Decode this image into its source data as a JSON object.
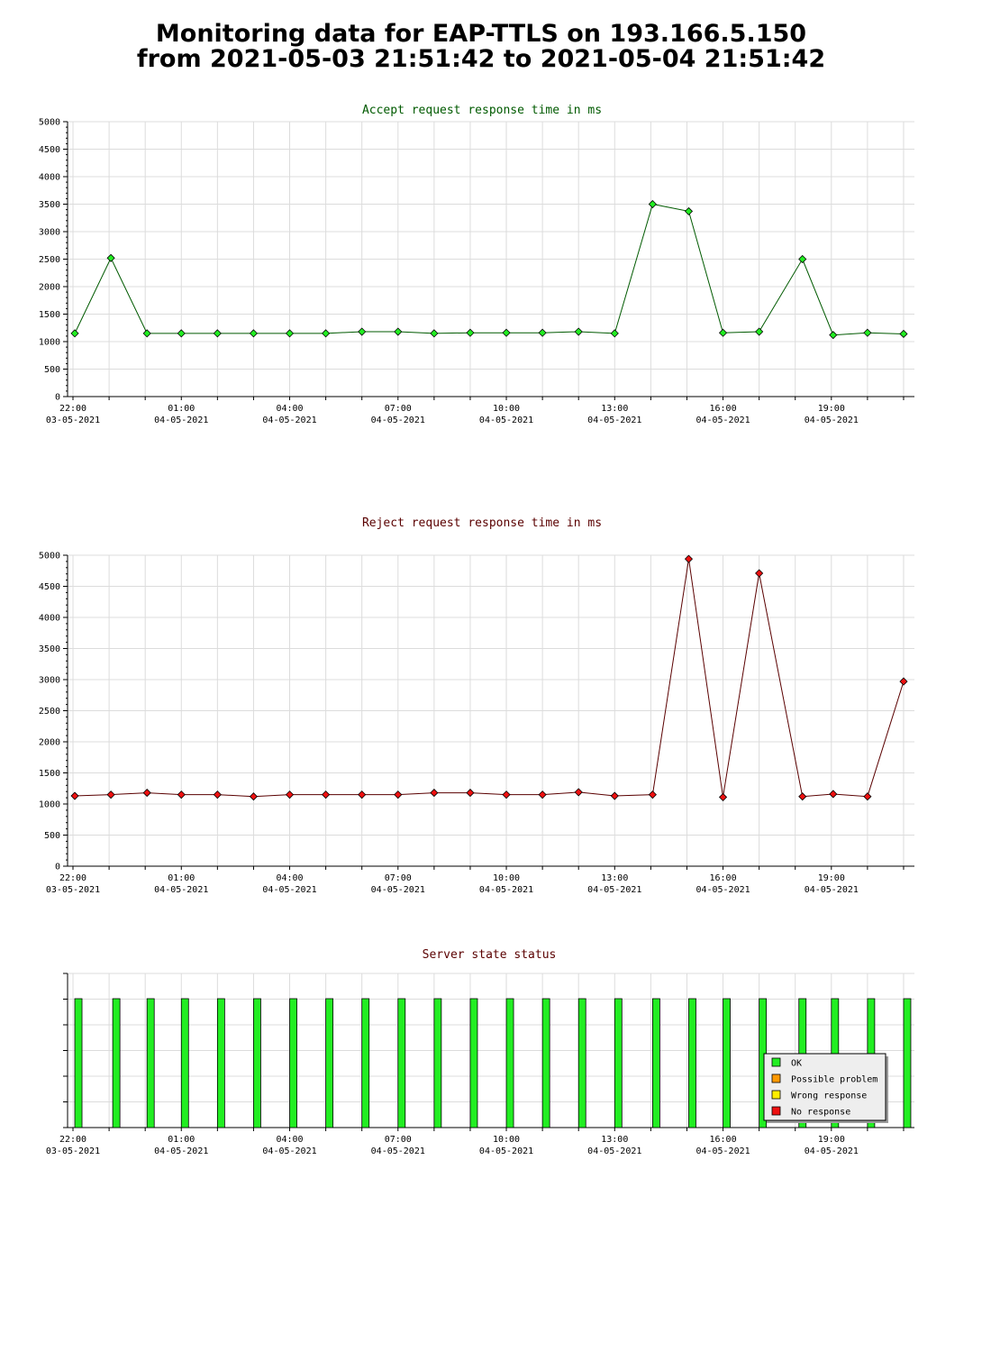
{
  "page": {
    "title_line1": "Monitoring data for EAP-TTLS on 193.166.5.150",
    "title_line2": "from 2021-05-03 21:51:42 to 2021-05-04 21:51:42"
  },
  "colors": {
    "accept_line": "#005a00",
    "accept_marker": "#22ee22",
    "reject_line": "#5a0000",
    "reject_marker": "#ee1111",
    "ok": "#22ee22",
    "possible_problem": "#ff9900",
    "wrong_response": "#ffee00",
    "no_response": "#ee1111"
  },
  "chart_data": [
    {
      "type": "line",
      "title": "Accept request response time in ms",
      "xlabel": "",
      "ylabel": "",
      "ylim": [
        0,
        5000
      ],
      "y_ticks": [
        0,
        500,
        1000,
        1500,
        2000,
        2500,
        3000,
        3500,
        4000,
        4500,
        5000
      ],
      "x_range_hours": [
        -0.15,
        23.3
      ],
      "x_tick_labels": [
        {
          "time": "22:00",
          "date": "03-05-2021"
        },
        {
          "time": "01:00",
          "date": "04-05-2021"
        },
        {
          "time": "04:00",
          "date": "04-05-2021"
        },
        {
          "time": "07:00",
          "date": "04-05-2021"
        },
        {
          "time": "10:00",
          "date": "04-05-2021"
        },
        {
          "time": "13:00",
          "date": "04-05-2021"
        },
        {
          "time": "16:00",
          "date": "04-05-2021"
        },
        {
          "time": "19:00",
          "date": "04-05-2021"
        }
      ],
      "grid": true,
      "series": [
        {
          "x": [
            0.05,
            1.05,
            2.05,
            3.0,
            4.0,
            5.0,
            6.0,
            7.0,
            8.0,
            9.0,
            10.0,
            11.0,
            12.0,
            13.0,
            14.0,
            15.0,
            16.05,
            17.05,
            18.0,
            19.0,
            20.2,
            21.05,
            22.0,
            23.0
          ],
          "values": [
            1150,
            2520,
            1150,
            1150,
            1150,
            1150,
            1150,
            1150,
            1180,
            1180,
            1150,
            1160,
            1160,
            1160,
            1180,
            1150,
            3500,
            3370,
            1160,
            1180,
            2500,
            1120,
            1160,
            1140
          ]
        }
      ]
    },
    {
      "type": "line",
      "title": "Reject request response time in ms",
      "xlabel": "",
      "ylabel": "",
      "ylim": [
        0,
        5000
      ],
      "y_ticks": [
        0,
        500,
        1000,
        1500,
        2000,
        2500,
        3000,
        3500,
        4000,
        4500,
        5000
      ],
      "x_range_hours": [
        -0.15,
        23.3
      ],
      "x_tick_labels": [
        {
          "time": "22:00",
          "date": "03-05-2021"
        },
        {
          "time": "01:00",
          "date": "04-05-2021"
        },
        {
          "time": "04:00",
          "date": "04-05-2021"
        },
        {
          "time": "07:00",
          "date": "04-05-2021"
        },
        {
          "time": "10:00",
          "date": "04-05-2021"
        },
        {
          "time": "13:00",
          "date": "04-05-2021"
        },
        {
          "time": "16:00",
          "date": "04-05-2021"
        },
        {
          "time": "19:00",
          "date": "04-05-2021"
        }
      ],
      "grid": true,
      "series": [
        {
          "x": [
            0.05,
            1.05,
            2.05,
            3.0,
            4.0,
            5.0,
            6.0,
            7.0,
            8.0,
            9.0,
            10.0,
            11.0,
            12.0,
            13.0,
            14.0,
            15.0,
            16.05,
            17.05,
            18.0,
            19.0,
            20.2,
            21.05,
            22.0,
            23.0
          ],
          "values": [
            1130,
            1150,
            1180,
            1150,
            1150,
            1120,
            1150,
            1150,
            1150,
            1150,
            1180,
            1180,
            1150,
            1150,
            1190,
            1130,
            1150,
            4940,
            1110,
            4710,
            1120,
            1160,
            1120,
            2970
          ]
        }
      ]
    },
    {
      "type": "bar",
      "title": "Server state status",
      "x_range_hours": [
        -0.15,
        23.3
      ],
      "x_tick_labels": [
        {
          "time": "22:00",
          "date": "03-05-2021"
        },
        {
          "time": "01:00",
          "date": "04-05-2021"
        },
        {
          "time": "04:00",
          "date": "04-05-2021"
        },
        {
          "time": "07:00",
          "date": "04-05-2021"
        },
        {
          "time": "10:00",
          "date": "04-05-2021"
        },
        {
          "time": "13:00",
          "date": "04-05-2021"
        },
        {
          "time": "16:00",
          "date": "04-05-2021"
        },
        {
          "time": "19:00",
          "date": "04-05-2021"
        }
      ],
      "grid": true,
      "legend_position": "bottom-right",
      "legend": [
        "OK",
        "Possible problem",
        "Wrong response",
        "No response"
      ],
      "x": [
        0.15,
        1.2,
        2.15,
        3.1,
        4.1,
        5.1,
        6.1,
        7.1,
        8.1,
        9.1,
        10.1,
        11.1,
        12.1,
        13.1,
        14.1,
        15.1,
        16.15,
        17.15,
        18.1,
        19.1,
        20.2,
        21.1,
        22.1,
        23.1
      ],
      "status": [
        "OK",
        "OK",
        "OK",
        "OK",
        "OK",
        "OK",
        "OK",
        "OK",
        "OK",
        "OK",
        "OK",
        "OK",
        "OK",
        "OK",
        "OK",
        "OK",
        "OK",
        "OK",
        "OK",
        "OK",
        "OK",
        "OK",
        "OK",
        "OK"
      ]
    }
  ]
}
